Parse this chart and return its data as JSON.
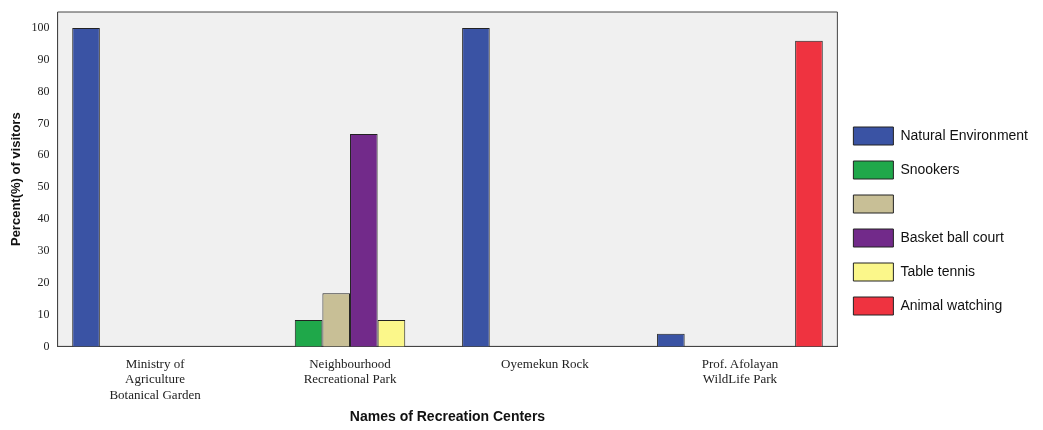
{
  "chart_data": {
    "type": "bar",
    "xlabel": "Names of Recreation Centers",
    "ylabel": "Percent(%) of visitors",
    "categories": [
      "Ministry of\nAgriculture\nBotanical Garden",
      "Neighbourhood\nRecreational Park",
      "Oyemekun Rock",
      "Prof. Afolayan\nWildLife Park"
    ],
    "series": [
      {
        "name": "Natural Environment",
        "color": "#3a53a4",
        "values": [
          100,
          null,
          100,
          4
        ]
      },
      {
        "name": "Snookers",
        "color": "#1fa84a",
        "values": [
          null,
          8.3,
          null,
          null
        ]
      },
      {
        "color": "#c8bf96",
        "values": [
          null,
          16.7,
          null,
          null
        ]
      },
      {
        "name": "Basket ball court",
        "color": "#722a8a",
        "values": [
          null,
          66.7,
          null,
          null
        ]
      },
      {
        "name": "Table tennis",
        "color": "#fbf78a",
        "values": [
          null,
          8.3,
          null,
          null
        ]
      },
      {
        "name": "Animal watching",
        "color": "#ef3340",
        "values": [
          null,
          null,
          null,
          96
        ]
      }
    ],
    "ylim": [
      0,
      105
    ],
    "yticks": [
      0,
      10,
      20,
      30,
      40,
      50,
      60,
      70,
      80,
      90,
      100
    ],
    "grid": false,
    "legend": "right"
  }
}
